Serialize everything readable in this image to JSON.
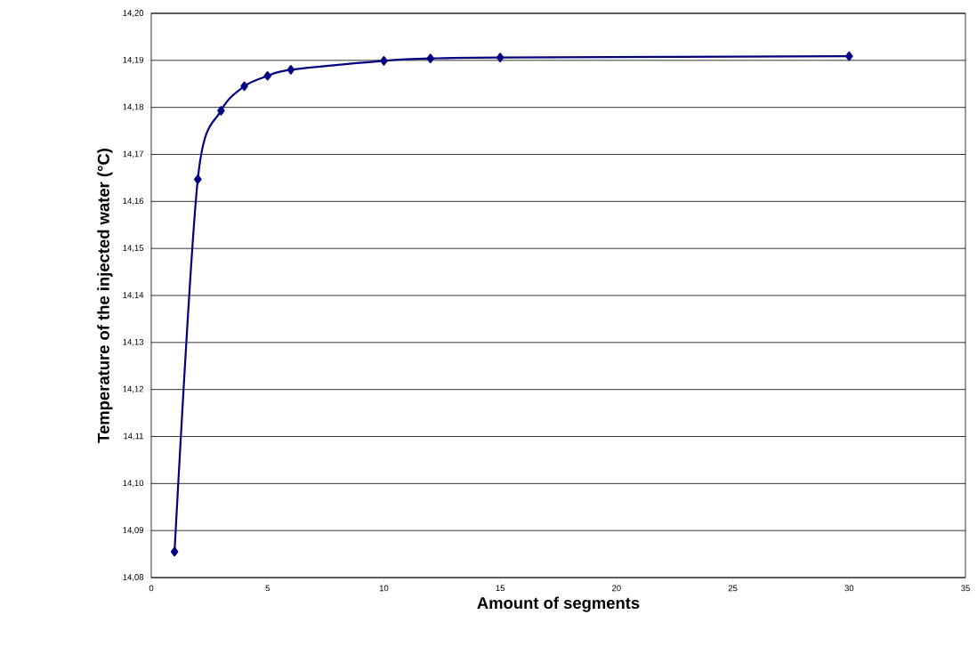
{
  "chart_data": {
    "type": "line",
    "xlabel": "Amount of segments",
    "ylabel": "Temperature of the injected water (°C)",
    "x": [
      1,
      2,
      3,
      4,
      5,
      6,
      10,
      12,
      15,
      30
    ],
    "series": [
      {
        "color": "#000080",
        "values": [
          14.0855,
          14.1647,
          14.1793,
          14.1845,
          14.1867,
          14.188,
          14.1899,
          14.1904,
          14.1906,
          14.1909
        ]
      }
    ],
    "xlim": [
      0,
      35
    ],
    "xticks": [
      0,
      5,
      10,
      15,
      20,
      25,
      30,
      35
    ],
    "ylim": [
      14.08,
      14.2
    ],
    "yticks": [
      {
        "value": 14.08,
        "label": "14,08"
      },
      {
        "value": 14.09,
        "label": "14,09"
      },
      {
        "value": 14.1,
        "label": "14,10"
      },
      {
        "value": 14.11,
        "label": "14,11"
      },
      {
        "value": 14.12,
        "label": "14,12"
      },
      {
        "value": 14.13,
        "label": "14,13"
      },
      {
        "value": 14.14,
        "label": "14,14"
      },
      {
        "value": 14.15,
        "label": "14,15"
      },
      {
        "value": 14.16,
        "label": "14,16"
      },
      {
        "value": 14.17,
        "label": "14,17"
      },
      {
        "value": 14.18,
        "label": "14,18"
      },
      {
        "value": 14.19,
        "label": "14,19"
      },
      {
        "value": 14.2,
        "label": "14,20"
      }
    ],
    "grid": "y",
    "marker": "diamond",
    "line_style": "solid"
  }
}
